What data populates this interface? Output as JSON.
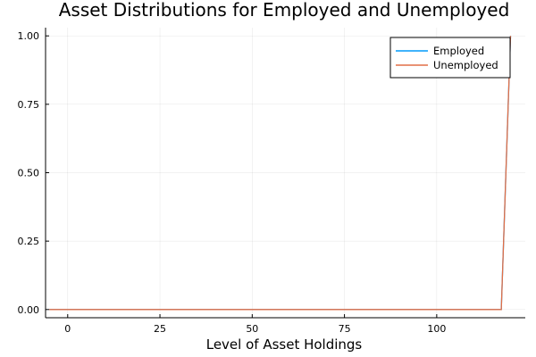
{
  "chart_data": {
    "type": "line",
    "title": "Asset Distributions for Employed and Unemployed",
    "xlabel": "Level of Asset Holdings",
    "ylabel": "",
    "xlim": [
      -6,
      124
    ],
    "ylim": [
      -0.03,
      1.03
    ],
    "x_ticks": [
      0,
      25,
      50,
      75,
      100
    ],
    "x_tick_labels": [
      "0",
      "25",
      "50",
      "75",
      "100"
    ],
    "y_ticks": [
      0.0,
      0.25,
      0.5,
      0.75,
      1.0
    ],
    "y_tick_labels": [
      "0.00",
      "0.25",
      "0.50",
      "0.75",
      "1.00"
    ],
    "grid": true,
    "legend_position": "top-right",
    "series": [
      {
        "name": "Employed",
        "color": "#009AFA",
        "x": [
          -5,
          117.5,
          120
        ],
        "y": [
          0.0,
          0.0,
          1.0
        ]
      },
      {
        "name": "Unemployed",
        "color": "#E26F46",
        "x": [
          -5,
          117.5,
          120
        ],
        "y": [
          0.0,
          0.0,
          1.0
        ]
      }
    ]
  }
}
